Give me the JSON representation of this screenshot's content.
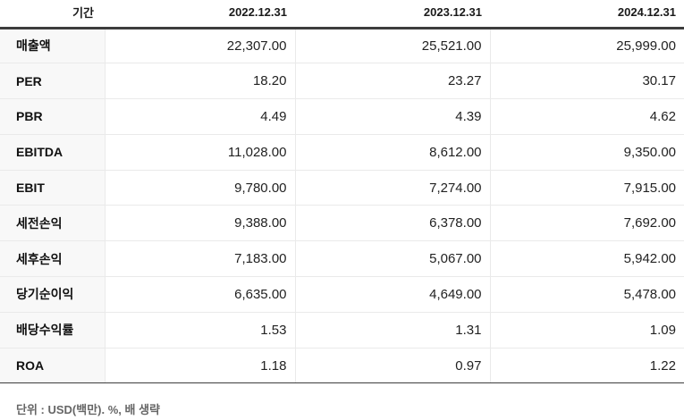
{
  "table": {
    "header": {
      "period_label": "기간",
      "columns": [
        "2022.12.31",
        "2023.12.31",
        "2024.12.31"
      ]
    },
    "rows": [
      {
        "label": "매출액",
        "values": [
          "22,307.00",
          "25,521.00",
          "25,999.00"
        ]
      },
      {
        "label": "PER",
        "values": [
          "18.20",
          "23.27",
          "30.17"
        ]
      },
      {
        "label": "PBR",
        "values": [
          "4.49",
          "4.39",
          "4.62"
        ]
      },
      {
        "label": "EBITDA",
        "values": [
          "11,028.00",
          "8,612.00",
          "9,350.00"
        ]
      },
      {
        "label": "EBIT",
        "values": [
          "9,780.00",
          "7,274.00",
          "7,915.00"
        ]
      },
      {
        "label": "세전손익",
        "values": [
          "9,388.00",
          "6,378.00",
          "7,692.00"
        ]
      },
      {
        "label": "세후손익",
        "values": [
          "7,183.00",
          "5,067.00",
          "5,942.00"
        ]
      },
      {
        "label": "당기순이익",
        "values": [
          "6,635.00",
          "4,649.00",
          "5,478.00"
        ]
      },
      {
        "label": "배당수익률",
        "values": [
          "1.53",
          "1.31",
          "1.09"
        ]
      },
      {
        "label": "ROA",
        "values": [
          "1.18",
          "0.97",
          "1.22"
        ]
      }
    ],
    "footer_note": "단위 : USD(백만). %, 배 생략"
  },
  "colors": {
    "header_border": "#3d3d3d",
    "row_border": "#eaeaea",
    "label_column_bg": "#f8f8f8",
    "value_text": "#222222",
    "footnote_text": "#666666"
  }
}
